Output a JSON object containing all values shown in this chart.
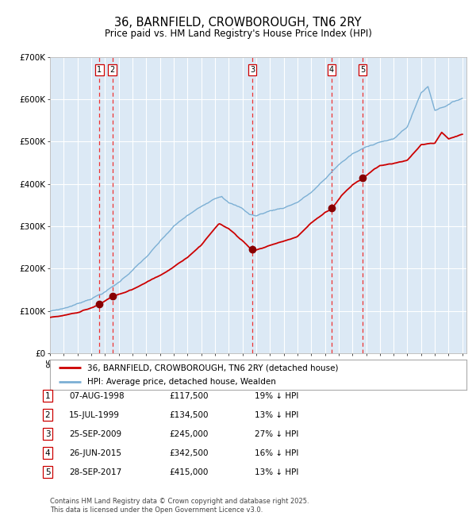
{
  "title": "36, BARNFIELD, CROWBOROUGH, TN6 2RY",
  "subtitle": "Price paid vs. HM Land Registry's House Price Index (HPI)",
  "title_fontsize": 10,
  "subtitle_fontsize": 8.5,
  "x_start_year": 1995,
  "x_end_year": 2025,
  "y_min": 0,
  "y_max": 700000,
  "y_ticks": [
    0,
    100000,
    200000,
    300000,
    400000,
    500000,
    600000,
    700000
  ],
  "y_tick_labels": [
    "£0",
    "£100K",
    "£200K",
    "£300K",
    "£400K",
    "£500K",
    "£600K",
    "£700K"
  ],
  "bg_color": "#dce9f5",
  "grid_color": "#ffffff",
  "hpi_line_color": "#7bafd4",
  "price_line_color": "#cc0000",
  "sale_marker_color": "#880000",
  "sale_vline_color": "#ee3333",
  "sale_dates_x": [
    1998.6,
    1999.54,
    2009.73,
    2015.49,
    2017.74
  ],
  "sale_prices": [
    117500,
    134500,
    245000,
    342500,
    415000
  ],
  "sale_labels": [
    "1",
    "2",
    "3",
    "4",
    "5"
  ],
  "sale_info": [
    {
      "label": "1",
      "date": "07-AUG-1998",
      "price": "£117,500",
      "hpi": "19% ↓ HPI"
    },
    {
      "label": "2",
      "date": "15-JUL-1999",
      "price": "£134,500",
      "hpi": "13% ↓ HPI"
    },
    {
      "label": "3",
      "date": "25-SEP-2009",
      "price": "£245,000",
      "hpi": "27% ↓ HPI"
    },
    {
      "label": "4",
      "date": "26-JUN-2015",
      "price": "£342,500",
      "hpi": "16% ↓ HPI"
    },
    {
      "label": "5",
      "date": "28-SEP-2017",
      "price": "£415,000",
      "hpi": "13% ↓ HPI"
    }
  ],
  "legend_line1": "36, BARNFIELD, CROWBOROUGH, TN6 2RY (detached house)",
  "legend_line2": "HPI: Average price, detached house, Wealden",
  "footer": "Contains HM Land Registry data © Crown copyright and database right 2025.\nThis data is licensed under the Open Government Licence v3.0."
}
